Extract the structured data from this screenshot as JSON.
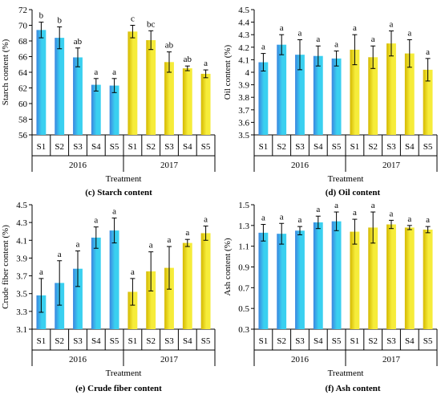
{
  "colors": {
    "series_2016_dark": "#3a86e0",
    "series_2016_light": "#3ad0f0",
    "series_2017_dark": "#d4b800",
    "series_2017_light": "#f6ec3a"
  },
  "chart_data": [
    {
      "panel": "c",
      "type": "bar",
      "caption": "(c) Starch content",
      "ylabel": "Starch content (%)",
      "xlabel": "Treatment",
      "ylim": [
        56,
        72
      ],
      "yticks": [
        56,
        58,
        60,
        62,
        64,
        66,
        68,
        70,
        72
      ],
      "ytick_labels": [
        "56",
        "58",
        "60",
        "62",
        "64",
        "66",
        "68",
        "70",
        "72"
      ],
      "categories": [
        "S1",
        "S2",
        "S3",
        "S4",
        "S5"
      ],
      "grid": false,
      "series": [
        {
          "name": "2016",
          "values": [
            69.4,
            68.4,
            65.9,
            62.4,
            62.3
          ],
          "errors": [
            1.0,
            1.4,
            1.2,
            0.8,
            0.9
          ],
          "letters": [
            "b",
            "b",
            "ab",
            "a",
            "a"
          ]
        },
        {
          "name": "2017",
          "values": [
            69.2,
            68.1,
            65.3,
            64.5,
            63.8
          ],
          "errors": [
            0.8,
            1.2,
            1.3,
            0.3,
            0.5
          ],
          "letters": [
            "c",
            "bc",
            "ab",
            "ab",
            "a"
          ]
        }
      ]
    },
    {
      "panel": "d",
      "type": "bar",
      "caption": "(d) Oil content",
      "ylabel": "Oil content (%)",
      "xlabel": "Treatment",
      "ylim": [
        3.5,
        4.5
      ],
      "yticks": [
        3.5,
        3.6,
        3.7,
        3.8,
        3.9,
        4.0,
        4.1,
        4.2,
        4.3,
        4.4,
        4.5
      ],
      "ytick_labels": [
        "3.5",
        "3.6",
        "3.7",
        "3.8",
        "3.9",
        "4",
        "4.1",
        "4.2",
        "4.3",
        "4.4",
        "4.5"
      ],
      "categories": [
        "S1",
        "S2",
        "S3",
        "S4",
        "S5"
      ],
      "grid": false,
      "series": [
        {
          "name": "2016",
          "values": [
            4.08,
            4.22,
            4.14,
            4.13,
            4.11
          ],
          "errors": [
            0.07,
            0.08,
            0.12,
            0.08,
            0.06
          ],
          "letters": [
            "a",
            "a",
            "a",
            "a",
            "a"
          ]
        },
        {
          "name": "2017",
          "values": [
            4.18,
            4.12,
            4.23,
            4.15,
            4.02
          ],
          "errors": [
            0.12,
            0.09,
            0.1,
            0.11,
            0.09
          ],
          "letters": [
            "a",
            "a",
            "a",
            "a",
            "a"
          ]
        }
      ]
    },
    {
      "panel": "e",
      "type": "bar",
      "caption": "(e) Crude fiber content",
      "ylabel": "Crude fiber content (%)",
      "xlabel": "Treatment",
      "ylim": [
        3.1,
        4.5
      ],
      "yticks": [
        3.1,
        3.3,
        3.5,
        3.7,
        3.9,
        4.1,
        4.3,
        4.5
      ],
      "ytick_labels": [
        "3.1",
        "3.3",
        "3.5",
        "3.7",
        "3.9",
        "4.1",
        "4.3",
        "4.5"
      ],
      "categories": [
        "S1",
        "S2",
        "S3",
        "S4",
        "S5"
      ],
      "grid": false,
      "series": [
        {
          "name": "2016",
          "values": [
            3.48,
            3.62,
            3.78,
            4.13,
            4.21
          ],
          "errors": [
            0.19,
            0.25,
            0.2,
            0.12,
            0.14
          ],
          "letters": [
            "a",
            "a",
            "a",
            "a",
            "a"
          ]
        },
        {
          "name": "2017",
          "values": [
            3.52,
            3.75,
            3.79,
            4.07,
            4.18
          ],
          "errors": [
            0.15,
            0.22,
            0.24,
            0.04,
            0.08
          ],
          "letters": [
            "a",
            "a",
            "a",
            "a",
            "a"
          ]
        }
      ]
    },
    {
      "panel": "f",
      "type": "bar",
      "caption": "(f) Ash content",
      "ylabel": "Ash content (%)",
      "xlabel": "Treatment",
      "ylim": [
        0.3,
        1.5
      ],
      "yticks": [
        0.3,
        0.5,
        0.7,
        0.9,
        1.1,
        1.3,
        1.5
      ],
      "ytick_labels": [
        "0.3",
        "0.5",
        "0.7",
        "0.9",
        "1.1",
        "1.3",
        "1.5"
      ],
      "categories": [
        "S1",
        "S2",
        "S3",
        "S4",
        "S5"
      ],
      "grid": false,
      "series": [
        {
          "name": "2016",
          "values": [
            1.23,
            1.22,
            1.25,
            1.33,
            1.34
          ],
          "errors": [
            0.08,
            0.1,
            0.04,
            0.06,
            0.09
          ],
          "letters": [
            "a",
            "a",
            "a",
            "a",
            "a"
          ]
        },
        {
          "name": "2017",
          "values": [
            1.24,
            1.28,
            1.31,
            1.28,
            1.26
          ],
          "errors": [
            0.12,
            0.15,
            0.04,
            0.02,
            0.03
          ],
          "letters": [
            "a",
            "a",
            "a",
            "a",
            "a"
          ]
        }
      ]
    }
  ]
}
